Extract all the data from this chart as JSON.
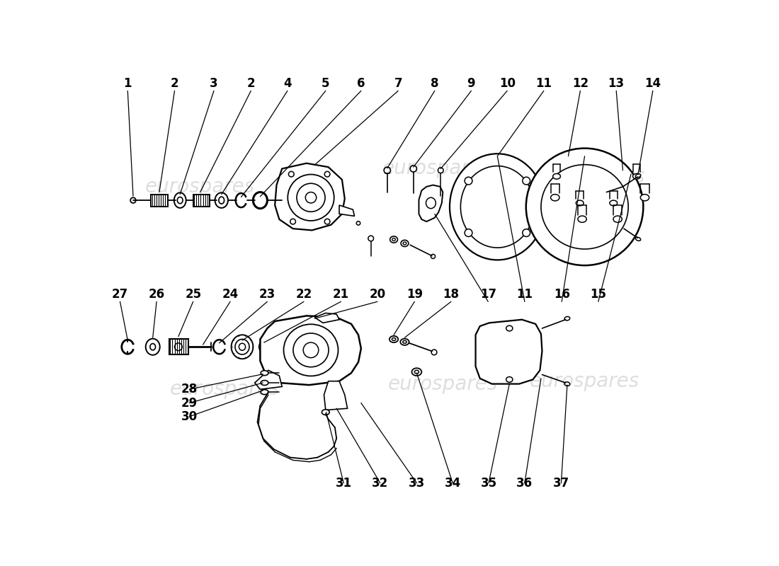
{
  "background_color": "#ffffff",
  "watermark_color": "#c8c8c8",
  "line_color": "#000000",
  "text_color": "#000000",
  "font_size": 12,
  "top_labels": [
    [
      52,
      28,
      "1"
    ],
    [
      138,
      28,
      "2"
    ],
    [
      210,
      28,
      "3"
    ],
    [
      278,
      28,
      "2"
    ],
    [
      345,
      28,
      "4"
    ],
    [
      415,
      28,
      "5"
    ],
    [
      480,
      28,
      "6"
    ],
    [
      548,
      28,
      "7"
    ],
    [
      615,
      28,
      "8"
    ],
    [
      682,
      28,
      "9"
    ],
    [
      748,
      28,
      "10"
    ],
    [
      815,
      28,
      "11"
    ],
    [
      882,
      28,
      "12"
    ],
    [
      948,
      28,
      "13"
    ],
    [
      1015,
      28,
      "14"
    ]
  ],
  "mid_labels": [
    [
      38,
      415,
      "27"
    ],
    [
      105,
      415,
      "26"
    ],
    [
      172,
      415,
      "25"
    ],
    [
      240,
      415,
      "24"
    ],
    [
      308,
      415,
      "23"
    ],
    [
      375,
      415,
      "22"
    ],
    [
      443,
      415,
      "21"
    ],
    [
      510,
      415,
      "20"
    ],
    [
      578,
      415,
      "19"
    ],
    [
      645,
      415,
      "18"
    ],
    [
      713,
      415,
      "17"
    ],
    [
      780,
      415,
      "11"
    ],
    [
      848,
      415,
      "16"
    ],
    [
      915,
      415,
      "15"
    ]
  ],
  "bot_labels": [
    [
      165,
      590,
      "28"
    ],
    [
      165,
      615,
      "29"
    ],
    [
      165,
      640,
      "30"
    ],
    [
      448,
      762,
      "31"
    ],
    [
      515,
      762,
      "32"
    ],
    [
      582,
      762,
      "33"
    ],
    [
      648,
      762,
      "34"
    ],
    [
      714,
      762,
      "35"
    ],
    [
      780,
      762,
      "36"
    ],
    [
      847,
      762,
      "37"
    ]
  ]
}
